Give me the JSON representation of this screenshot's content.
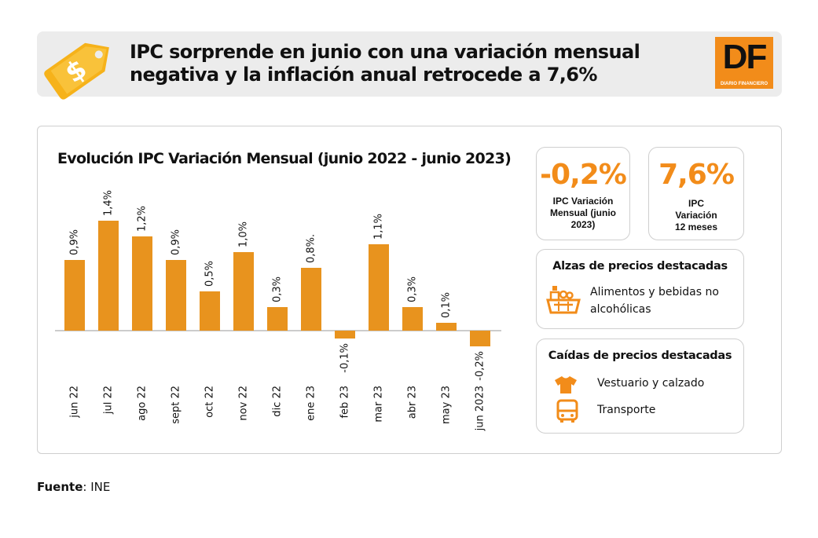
{
  "header": {
    "title": "IPC sorprende en junio con una variación mensual negativa y la inflación anual retrocede a 7,6%",
    "logo_letters": "DF",
    "logo_name": "DIARIO FINANCIERO"
  },
  "kpis": [
    {
      "value": "-0,2%",
      "label": "IPC Variación Mensual (junio 2023)"
    },
    {
      "value": "7,6%",
      "label": "IPC Variación 12 meses"
    }
  ],
  "alzas": {
    "title": "Alzas de precios destacadas",
    "items": [
      {
        "icon": "grocery-basket-icon",
        "text": "Alimentos y bebidas no alcohólicas"
      }
    ]
  },
  "caidas": {
    "title": "Caídas de precios destacadas",
    "items": [
      {
        "icon": "tshirt-icon",
        "text": "Vestuario y calzado"
      },
      {
        "icon": "bus-icon",
        "text": "Transporte"
      }
    ]
  },
  "source": {
    "label": "Fuente",
    "value": ": INE"
  },
  "colors": {
    "accent": "#f28c1a",
    "bar": "#e8931e",
    "header_bg": "#ececec"
  },
  "chart_data": {
    "type": "bar",
    "title": "Evolución IPC Variación Mensual (junio 2022 - junio 2023)",
    "xlabel": "",
    "ylabel": "",
    "ylim": [
      -0.2,
      1.4
    ],
    "categories": [
      "jun 22",
      "jul 22",
      "ago 22",
      "sept 22",
      "oct 22",
      "nov 22",
      "dic 22",
      "ene 23",
      "feb 23",
      "mar 23",
      "abr 23",
      "may 23",
      "jun 2023"
    ],
    "values": [
      0.9,
      1.4,
      1.2,
      0.9,
      0.5,
      1.0,
      0.3,
      0.8,
      -0.1,
      1.1,
      0.3,
      0.1,
      -0.2
    ],
    "data_labels": [
      "0,9%",
      "1,4%",
      "1,2%",
      "0,9%",
      "0,5%",
      "1,0%",
      "0,3%",
      "0,8%.",
      "-0,1%",
      "1,1%",
      "0,3%",
      "0,1%",
      "-0,2%"
    ]
  }
}
